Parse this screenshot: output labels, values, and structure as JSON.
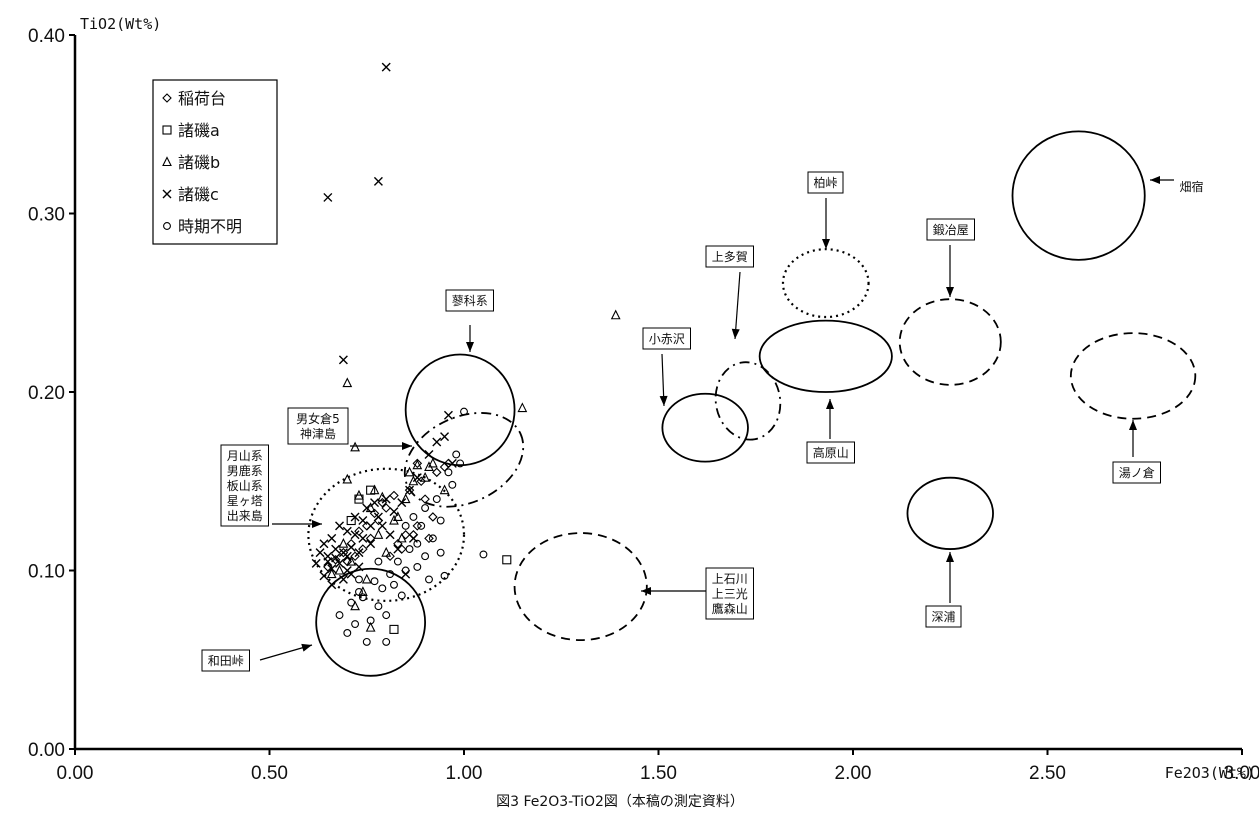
{
  "chart_data": {
    "type": "scatter",
    "title": "",
    "xlabel": "Fe2O3(Wt%)",
    "ylabel": "TiO2(Wt%)",
    "xlim": [
      0,
      3
    ],
    "ylim": [
      0,
      0.4
    ],
    "x_ticks": [
      "0.00",
      "0.50",
      "1.00",
      "1.50",
      "2.00",
      "2.50",
      "3.00"
    ],
    "y_ticks": [
      "0.00",
      "0.10",
      "0.20",
      "0.30",
      "0.40"
    ],
    "grid": false,
    "legend_position": "top-left",
    "caption": "図3 Fe2O3-TiO2図（本稿の測定資料）",
    "series": [
      {
        "name": "稲荷台",
        "marker": "diamond",
        "points": [
          [
            0.9,
            0.14
          ],
          [
            0.92,
            0.13
          ],
          [
            0.88,
            0.125
          ],
          [
            0.85,
            0.12
          ],
          [
            0.83,
            0.115
          ],
          [
            0.8,
            0.135
          ],
          [
            0.78,
            0.128
          ],
          [
            0.76,
            0.118
          ],
          [
            0.74,
            0.112
          ],
          [
            0.72,
            0.108
          ],
          [
            0.7,
            0.105
          ],
          [
            0.93,
            0.155
          ],
          [
            0.95,
            0.158
          ],
          [
            0.89,
            0.15
          ],
          [
            0.86,
            0.145
          ],
          [
            0.82,
            0.142
          ],
          [
            0.79,
            0.138
          ],
          [
            0.77,
            0.132
          ],
          [
            0.75,
            0.125
          ],
          [
            0.73,
            0.122
          ],
          [
            0.71,
            0.115
          ],
          [
            0.69,
            0.11
          ],
          [
            0.67,
            0.106
          ],
          [
            0.87,
            0.12
          ],
          [
            0.91,
            0.118
          ],
          [
            0.84,
            0.112
          ],
          [
            0.81,
            0.108
          ],
          [
            0.96,
            0.16
          ],
          [
            0.65,
            0.102
          ],
          [
            0.88,
            0.16
          ]
        ]
      },
      {
        "name": "諸磯a",
        "marker": "square",
        "points": [
          [
            1.11,
            0.106
          ],
          [
            0.82,
            0.067
          ],
          [
            0.76,
            0.145
          ],
          [
            0.73,
            0.14
          ],
          [
            0.71,
            0.128
          ]
        ]
      },
      {
        "name": "諸磯b",
        "marker": "triangle",
        "points": [
          [
            0.72,
            0.169
          ],
          [
            0.7,
            0.205
          ],
          [
            1.39,
            0.243
          ],
          [
            1.15,
            0.191
          ],
          [
            0.7,
            0.151
          ],
          [
            0.73,
            0.142
          ],
          [
            0.76,
            0.135
          ],
          [
            0.79,
            0.141
          ],
          [
            0.82,
            0.128
          ],
          [
            0.85,
            0.14
          ],
          [
            0.88,
            0.159
          ],
          [
            0.9,
            0.152
          ],
          [
            0.92,
            0.16
          ],
          [
            0.95,
            0.145
          ],
          [
            0.86,
            0.155
          ],
          [
            0.74,
            0.088
          ],
          [
            0.76,
            0.068
          ],
          [
            0.72,
            0.08
          ],
          [
            0.68,
            0.1
          ],
          [
            0.78,
            0.12
          ],
          [
            0.8,
            0.11
          ],
          [
            0.84,
            0.118
          ],
          [
            0.69,
            0.115
          ],
          [
            0.75,
            0.095
          ],
          [
            0.71,
            0.105
          ],
          [
            0.83,
            0.13
          ],
          [
            0.87,
            0.15
          ],
          [
            0.91,
            0.158
          ],
          [
            0.77,
            0.145
          ],
          [
            0.66,
            0.098
          ]
        ]
      },
      {
        "name": "諸磯c",
        "marker": "x",
        "points": [
          [
            0.8,
            0.382
          ],
          [
            0.65,
            0.309
          ],
          [
            0.78,
            0.318
          ],
          [
            0.69,
            0.218
          ],
          [
            0.96,
            0.187
          ],
          [
            0.93,
            0.172
          ],
          [
            0.95,
            0.175
          ],
          [
            0.97,
            0.16
          ],
          [
            0.91,
            0.165
          ],
          [
            0.88,
            0.152
          ],
          [
            0.86,
            0.145
          ],
          [
            0.84,
            0.138
          ],
          [
            0.82,
            0.133
          ],
          [
            0.8,
            0.14
          ],
          [
            0.78,
            0.13
          ],
          [
            0.76,
            0.125
          ],
          [
            0.74,
            0.118
          ],
          [
            0.72,
            0.12
          ],
          [
            0.71,
            0.113
          ],
          [
            0.7,
            0.108
          ],
          [
            0.69,
            0.11
          ],
          [
            0.68,
            0.104
          ],
          [
            0.67,
            0.107
          ],
          [
            0.66,
            0.101
          ],
          [
            0.65,
            0.105
          ],
          [
            0.64,
            0.097
          ],
          [
            0.63,
            0.11
          ],
          [
            0.64,
            0.115
          ],
          [
            0.66,
            0.118
          ],
          [
            0.68,
            0.125
          ],
          [
            0.7,
            0.122
          ],
          [
            0.72,
            0.13
          ],
          [
            0.74,
            0.128
          ],
          [
            0.75,
            0.135
          ],
          [
            0.77,
            0.138
          ],
          [
            0.79,
            0.125
          ],
          [
            0.81,
            0.12
          ],
          [
            0.83,
            0.112
          ],
          [
            0.85,
            0.098
          ],
          [
            0.87,
            0.118
          ],
          [
            0.73,
            0.102
          ],
          [
            0.71,
            0.098
          ],
          [
            0.69,
            0.095
          ],
          [
            0.67,
            0.112
          ],
          [
            0.65,
            0.108
          ],
          [
            0.62,
            0.104
          ],
          [
            0.66,
            0.092
          ],
          [
            0.7,
            0.1
          ],
          [
            0.73,
            0.11
          ],
          [
            0.76,
            0.115
          ]
        ]
      },
      {
        "name": "時期不明",
        "marker": "circle",
        "points": [
          [
            1.0,
            0.189
          ],
          [
            1.05,
            0.109
          ],
          [
            0.75,
            0.06
          ],
          [
            0.8,
            0.075
          ],
          [
            0.78,
            0.08
          ],
          [
            0.72,
            0.07
          ],
          [
            0.7,
            0.065
          ],
          [
            0.68,
            0.075
          ],
          [
            0.74,
            0.085
          ],
          [
            0.79,
            0.09
          ],
          [
            0.82,
            0.092
          ],
          [
            0.85,
            0.1
          ],
          [
            0.88,
            0.102
          ],
          [
            0.9,
            0.108
          ],
          [
            0.94,
            0.11
          ],
          [
            0.95,
            0.097
          ],
          [
            0.92,
            0.118
          ],
          [
            0.89,
            0.125
          ],
          [
            0.87,
            0.13
          ],
          [
            0.93,
            0.14
          ],
          [
            0.98,
            0.165
          ],
          [
            0.96,
            0.155
          ],
          [
            0.97,
            0.148
          ],
          [
            0.86,
            0.112
          ],
          [
            0.83,
            0.105
          ],
          [
            0.81,
            0.098
          ],
          [
            0.77,
            0.094
          ],
          [
            0.73,
            0.088
          ],
          [
            0.71,
            0.082
          ],
          [
            0.76,
            0.072
          ],
          [
            0.84,
            0.086
          ],
          [
            0.91,
            0.095
          ],
          [
            0.99,
            0.16
          ],
          [
            0.8,
            0.06
          ],
          [
            0.73,
            0.095
          ],
          [
            0.94,
            0.128
          ],
          [
            0.9,
            0.135
          ],
          [
            0.85,
            0.125
          ],
          [
            0.78,
            0.105
          ],
          [
            0.88,
            0.115
          ]
        ]
      }
    ],
    "regions": [
      {
        "label": "蓼科系",
        "cx": 0.99,
        "cy": 0.19,
        "rx": 0.14,
        "ry": 0.031,
        "style": "solid"
      },
      {
        "label": "男女倉5 神津島",
        "cx": 1.0,
        "cy": 0.162,
        "rx": 0.16,
        "ry": 0.024,
        "style": "dashdot",
        "rotate": -25
      },
      {
        "label": "月山系 男鹿系 板山系 星ヶ塔 出来島",
        "cx": 0.8,
        "cy": 0.12,
        "rx": 0.2,
        "ry": 0.037,
        "style": "dotted"
      },
      {
        "label": "和田峠",
        "cx": 0.76,
        "cy": 0.071,
        "rx": 0.14,
        "ry": 0.03,
        "style": "solid"
      },
      {
        "label": "上石川 上三光 鷹森山",
        "cx": 1.3,
        "cy": 0.091,
        "rx": 0.17,
        "ry": 0.03,
        "style": "dashed"
      },
      {
        "label": "小赤沢",
        "cx": 1.62,
        "cy": 0.18,
        "rx": 0.11,
        "ry": 0.019,
        "style": "solid"
      },
      {
        "label": "上多賀",
        "cx": 1.73,
        "cy": 0.195,
        "rx": 0.1,
        "ry": 0.018,
        "style": "dashdot",
        "rotate": 80
      },
      {
        "label": "高原山",
        "cx": 1.93,
        "cy": 0.22,
        "rx": 0.17,
        "ry": 0.02,
        "style": "solid"
      },
      {
        "label": "柏峠",
        "cx": 1.93,
        "cy": 0.261,
        "rx": 0.11,
        "ry": 0.019,
        "style": "dotted"
      },
      {
        "label": "鍛冶屋",
        "cx": 2.25,
        "cy": 0.228,
        "rx": 0.13,
        "ry": 0.024,
        "style": "dashed"
      },
      {
        "label": "深浦",
        "cx": 2.25,
        "cy": 0.132,
        "rx": 0.11,
        "ry": 0.02,
        "style": "solid"
      },
      {
        "label": "湯ノ倉",
        "cx": 2.72,
        "cy": 0.209,
        "rx": 0.16,
        "ry": 0.024,
        "style": "dashed"
      },
      {
        "label": "畑宿",
        "cx": 2.58,
        "cy": 0.31,
        "rx": 0.17,
        "ry": 0.036,
        "style": "solid"
      }
    ]
  }
}
